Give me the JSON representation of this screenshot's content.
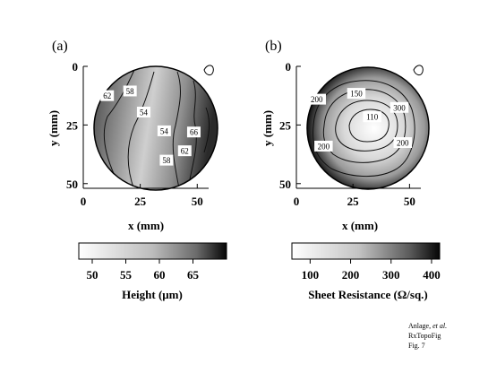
{
  "chart_data": [
    {
      "type": "heatmap",
      "panel_label": "(a)",
      "xlabel": "x (mm)",
      "ylabel": "y (mm)",
      "xlim": [
        0,
        55
      ],
      "ylim": [
        0,
        52
      ],
      "x_ticks": [
        0,
        25,
        50
      ],
      "y_ticks": [
        0,
        25,
        50
      ],
      "contour_labels": [
        {
          "text": "62",
          "x": 10.5,
          "y": 12.5
        },
        {
          "text": "58",
          "x": 20.5,
          "y": 10.5
        },
        {
          "text": "54",
          "x": 26.5,
          "y": 19.5
        },
        {
          "text": "54",
          "x": 35.5,
          "y": 27.5
        },
        {
          "text": "66",
          "x": 48.5,
          "y": 28.0
        },
        {
          "text": "62",
          "x": 44.5,
          "y": 36.0
        },
        {
          "text": "58",
          "x": 36.5,
          "y": 40.0
        }
      ],
      "colorbar": {
        "label": "Height (μm)",
        "ticks": [
          50,
          55,
          60,
          65
        ],
        "range": [
          48,
          70
        ]
      }
    },
    {
      "type": "heatmap",
      "panel_label": "(b)",
      "xlabel": "x (mm)",
      "ylabel": "y (mm)",
      "xlim": [
        0,
        55
      ],
      "ylim": [
        0,
        52
      ],
      "x_ticks": [
        0,
        25,
        50
      ],
      "y_ticks": [
        0,
        25,
        50
      ],
      "contour_labels": [
        {
          "text": "200",
          "x": 9.0,
          "y": 14.0
        },
        {
          "text": "150",
          "x": 26.5,
          "y": 11.5
        },
        {
          "text": "110",
          "x": 33.5,
          "y": 21.5
        },
        {
          "text": "300",
          "x": 45.5,
          "y": 17.5
        },
        {
          "text": "200",
          "x": 12.0,
          "y": 34.0
        },
        {
          "text": "200",
          "x": 47.0,
          "y": 32.5
        }
      ],
      "colorbar": {
        "label": "Sheet Resistance (Ω/sq.)",
        "ticks": [
          100,
          200,
          300,
          400
        ],
        "range": [
          55,
          420
        ]
      }
    }
  ],
  "footnote": {
    "line1_main": "Anlage, ",
    "line1_italic": "et al.",
    "line2": "RxTopoFig",
    "line3": "Fig. 7"
  }
}
